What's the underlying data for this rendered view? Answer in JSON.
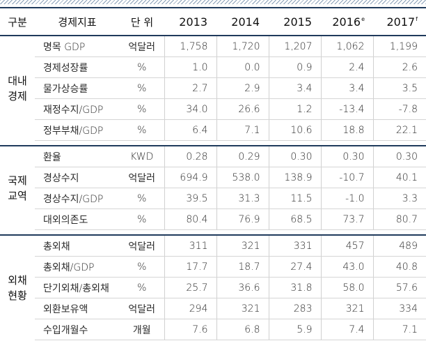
{
  "header": {
    "group": "구분",
    "indicator": "경제지표",
    "unit": "단 위",
    "years": [
      {
        "year": "2013",
        "mark": ""
      },
      {
        "year": "2014",
        "mark": ""
      },
      {
        "year": "2015",
        "mark": ""
      },
      {
        "year": "2016",
        "mark": "e"
      },
      {
        "year": "2017",
        "mark": "f"
      }
    ]
  },
  "sections": [
    {
      "title_line1": "대내",
      "title_line2": "경제",
      "rows": [
        {
          "label": "명목 GDP",
          "unit": "억달러",
          "values": [
            "1,758",
            "1,720",
            "1,207",
            "1,062",
            "1,199"
          ]
        },
        {
          "label": "경제성장률",
          "unit": "%",
          "values": [
            "1.0",
            "0.0",
            "0.9",
            "2.4",
            "2.6"
          ]
        },
        {
          "label": "물가상승률",
          "unit": "%",
          "values": [
            "2.7",
            "2.9",
            "3.4",
            "3.4",
            "3.5"
          ]
        },
        {
          "label": "재정수지/GDP",
          "unit": "%",
          "values": [
            "34.0",
            "26.6",
            "1.2",
            "-13.4",
            "-7.8"
          ]
        },
        {
          "label": "정부부채/GDP",
          "unit": "%",
          "values": [
            "6.4",
            "7.1",
            "10.6",
            "18.8",
            "22.1"
          ]
        }
      ]
    },
    {
      "title_line1": "국제",
      "title_line2": "교역",
      "rows": [
        {
          "label": "환율",
          "unit": "KWD",
          "values": [
            "0.28",
            "0.29",
            "0.30",
            "0.30",
            "0.30"
          ]
        },
        {
          "label": "경상수지",
          "unit": "억달러",
          "values": [
            "694.9",
            "538.0",
            "138.9",
            "-10.7",
            "40.1"
          ]
        },
        {
          "label": "경상수지/GDP",
          "unit": "%",
          "values": [
            "39.5",
            "31.3",
            "11.5",
            "-1.0",
            "3.3"
          ]
        },
        {
          "label": "대외의존도",
          "unit": "%",
          "values": [
            "80.4",
            "76.9",
            "68.5",
            "73.7",
            "80.7"
          ]
        }
      ]
    },
    {
      "title_line1": "외채",
      "title_line2": "현황",
      "rows": [
        {
          "label": "총외채",
          "unit": "억달러",
          "values": [
            "311",
            "321",
            "331",
            "457",
            "489"
          ]
        },
        {
          "label": "총외채/GDP",
          "unit": "%",
          "values": [
            "17.7",
            "18.7",
            "27.4",
            "43.0",
            "40.8"
          ]
        },
        {
          "label": "단기외채/총외채",
          "unit": "%",
          "values": [
            "25.7",
            "36.6",
            "31.8",
            "58.0",
            "57.6"
          ]
        },
        {
          "label": "외환보유액",
          "unit": "억달러",
          "values": [
            "294",
            "321",
            "283",
            "321",
            "334"
          ]
        },
        {
          "label": "수입개월수",
          "unit": "개월",
          "values": [
            "7.6",
            "6.8",
            "5.9",
            "7.4",
            "7.1"
          ]
        }
      ]
    }
  ]
}
